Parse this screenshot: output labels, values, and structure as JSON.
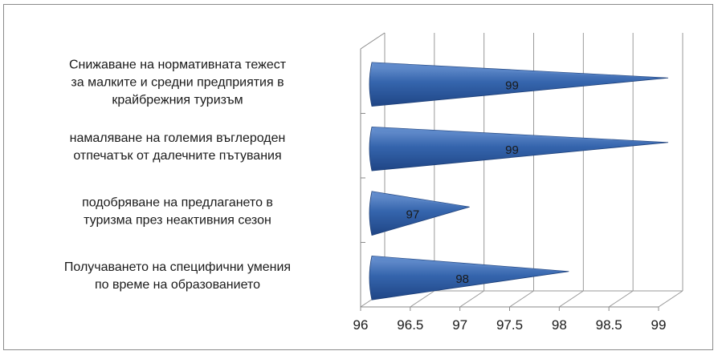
{
  "chart_data": {
    "type": "bar",
    "orientation": "horizontal",
    "style": "3d-cone",
    "categories": [
      [
        "Снижаване на нормативната тежест",
        "за малките и средни предприятия в",
        "крайбрежния туризъм"
      ],
      [
        "намаляване на големия въглероден",
        "отпечатък от далечните пътувания"
      ],
      [
        "подобряване на предлагането в",
        "туризма през неактивния сезон"
      ],
      [
        "Получаването на специфични умения",
        "по време на образованието"
      ]
    ],
    "values": [
      99,
      99,
      97,
      98
    ],
    "data_labels": [
      "99",
      "99",
      "97",
      "98"
    ],
    "xlim": [
      96,
      99
    ],
    "x_ticks": [
      "96",
      "96.5",
      "97",
      "97.5",
      "98",
      "98.5",
      "99"
    ],
    "grid": true,
    "bar_color": "#2e5a9c",
    "bar_highlight": "#5b87c9"
  }
}
